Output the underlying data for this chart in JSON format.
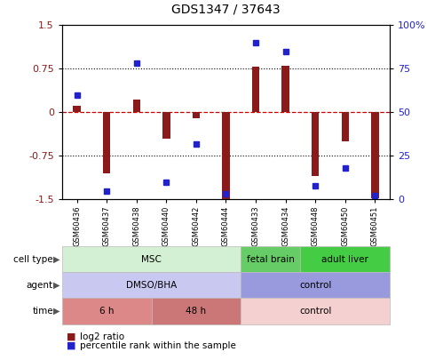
{
  "title": "GDS1347 / 37643",
  "samples": [
    "GSM60436",
    "GSM60437",
    "GSM60438",
    "GSM60440",
    "GSM60442",
    "GSM60444",
    "GSM60433",
    "GSM60434",
    "GSM60448",
    "GSM60450",
    "GSM60451"
  ],
  "log2_ratio": [
    0.12,
    -1.05,
    0.22,
    -0.45,
    -0.1,
    -1.5,
    0.78,
    0.8,
    -1.1,
    -0.5,
    -1.48
  ],
  "percentile_rank": [
    60,
    5,
    78,
    10,
    32,
    3,
    90,
    85,
    8,
    18,
    2
  ],
  "ylim": [
    -1.5,
    1.5
  ],
  "yticks_left": [
    -1.5,
    -0.75,
    0,
    0.75,
    1.5
  ],
  "yticks_right": [
    0,
    25,
    50,
    75,
    100
  ],
  "bar_color": "#8B1A1A",
  "dot_color": "#2222CC",
  "zero_line_color": "#CC0000",
  "grid_color": "#000000",
  "cell_type_groups": [
    {
      "label": "MSC",
      "start": 0,
      "end": 6,
      "color": "#d4f0d4"
    },
    {
      "label": "fetal brain",
      "start": 6,
      "end": 8,
      "color": "#66cc66"
    },
    {
      "label": "adult liver",
      "start": 8,
      "end": 11,
      "color": "#44cc44"
    }
  ],
  "agent_groups": [
    {
      "label": "DMSO/BHA",
      "start": 0,
      "end": 6,
      "color": "#c8c8f0"
    },
    {
      "label": "control",
      "start": 6,
      "end": 11,
      "color": "#9999dd"
    }
  ],
  "time_groups": [
    {
      "label": "6 h",
      "start": 0,
      "end": 3,
      "color": "#dd8888"
    },
    {
      "label": "48 h",
      "start": 3,
      "end": 6,
      "color": "#cc7777"
    },
    {
      "label": "control",
      "start": 6,
      "end": 11,
      "color": "#f5d0d0"
    }
  ],
  "row_labels": [
    "cell type",
    "agent",
    "time"
  ],
  "legend_red_label": "log2 ratio",
  "legend_blue_label": "percentile rank within the sample"
}
